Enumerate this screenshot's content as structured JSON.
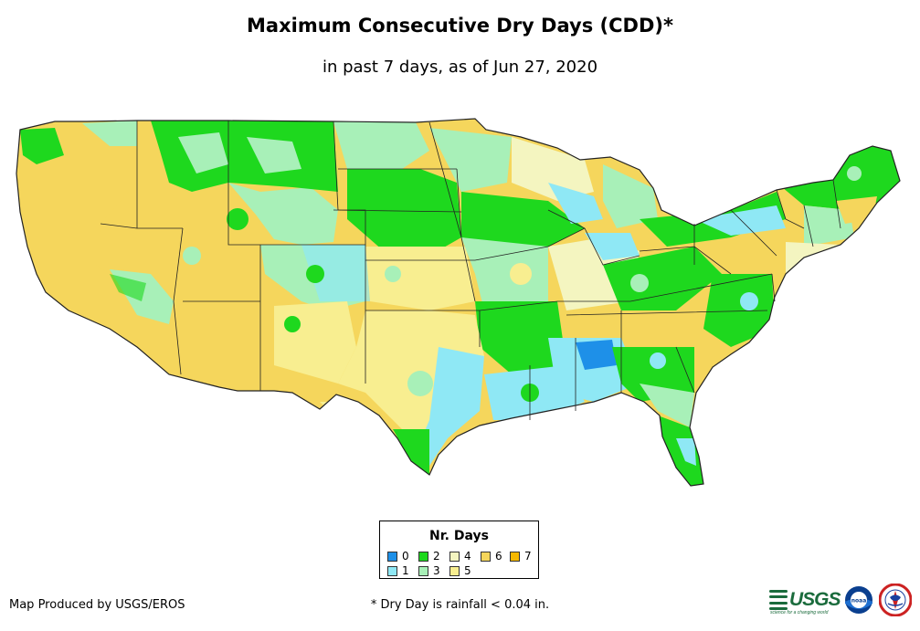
{
  "title": "Maximum Consecutive Dry Days (CDD)*",
  "subtitle": "in past 7 days, as of Jun 27, 2020",
  "legend": {
    "title": "Nr. Days",
    "items": [
      {
        "label": "0",
        "color": "#1e90e8"
      },
      {
        "label": "1",
        "color": "#8fe8f5"
      },
      {
        "label": "2",
        "color": "#1ed81e"
      },
      {
        "label": "3",
        "color": "#a8f0b8"
      },
      {
        "label": "4",
        "color": "#f4f5c0"
      },
      {
        "label": "5",
        "color": "#f8ee90"
      },
      {
        "label": "6",
        "color": "#f5d65c"
      },
      {
        "label": "7",
        "color": "#f5b800"
      }
    ]
  },
  "footer": {
    "producer": "Map Produced by USGS/EROS",
    "footnote": "* Dry Day is rainfall < 0.04 in."
  },
  "logos": {
    "usgs": "USGS",
    "usgs_tagline": "science for a changing world",
    "noaa": "noaa",
    "nws_icon": "nws-logo-icon"
  }
}
